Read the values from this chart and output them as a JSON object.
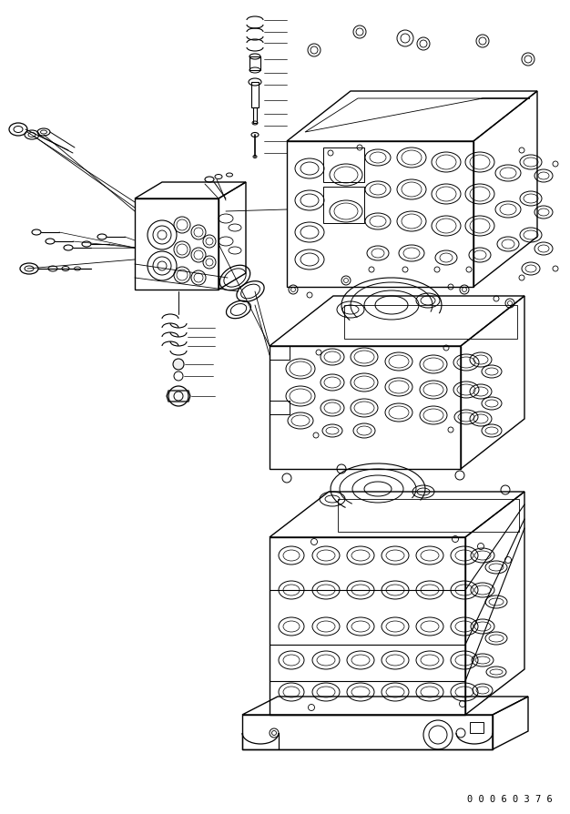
{
  "background_color": "#ffffff",
  "line_color": "#000000",
  "line_width": 1.0,
  "figure_width": 6.26,
  "figure_height": 8.94,
  "dpi": 100,
  "footer_text": "0 0 0 6 0 3 7 6",
  "footer_fontsize": 7.5,
  "footer_family": "monospace"
}
